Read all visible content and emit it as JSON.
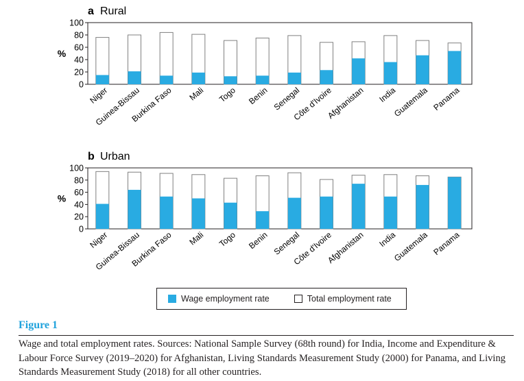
{
  "figure": {
    "label": "Figure 1",
    "caption": "Wage and total employment rates. Sources: National Sample Survey (68th round) for India, Income and Expenditure & Labour Force Survey (2019–2020) for Afghanistan, Living Standards Measurement Study (2000) for Panama, and Living Standards Measurement Study (2018) for all other countries."
  },
  "colors": {
    "wage": "#29abe2",
    "total_fill": "#ffffff",
    "outline": "#808080",
    "axis": "#231f20"
  },
  "legend": {
    "wage": "Wage employment rate",
    "total": "Total employment rate"
  },
  "chart_data": [
    {
      "type": "bar",
      "panel": "a",
      "title": "Rural",
      "ylabel": "%",
      "ylim": [
        0,
        100
      ],
      "yticks": [
        0,
        20,
        40,
        60,
        80,
        100
      ],
      "categories": [
        "Niger",
        "Guinea-Bissau",
        "Burkina Faso",
        "Mali",
        "Togo",
        "Benin",
        "Senegal",
        "Côte d'Ivoire",
        "Afghanistan",
        "India",
        "Guatemala",
        "Panama"
      ],
      "series": [
        {
          "name": "Wage employment rate",
          "values": [
            15,
            21,
            14,
            19,
            13,
            14,
            19,
            23,
            42,
            36,
            47,
            54
          ]
        },
        {
          "name": "Total employment rate",
          "values": [
            76,
            80,
            84,
            81,
            71,
            75,
            79,
            68,
            69,
            79,
            71,
            67
          ]
        }
      ]
    },
    {
      "type": "bar",
      "panel": "b",
      "title": "Urban",
      "ylabel": "%",
      "ylim": [
        0,
        100
      ],
      "yticks": [
        0,
        20,
        40,
        60,
        80,
        100
      ],
      "categories": [
        "Niger",
        "Guinea-Bissau",
        "Burkina Faso",
        "Mali",
        "Togo",
        "Benin",
        "Senegal",
        "Côte d'Ivoire",
        "Afghanistan",
        "India",
        "Guatemala",
        "Panama"
      ],
      "series": [
        {
          "name": "Wage employment rate",
          "values": [
            41,
            64,
            53,
            50,
            43,
            29,
            51,
            53,
            74,
            53,
            72,
            85
          ]
        },
        {
          "name": "Total employment rate",
          "values": [
            94,
            93,
            91,
            89,
            83,
            87,
            92,
            81,
            88,
            89,
            87,
            85
          ]
        }
      ]
    }
  ]
}
